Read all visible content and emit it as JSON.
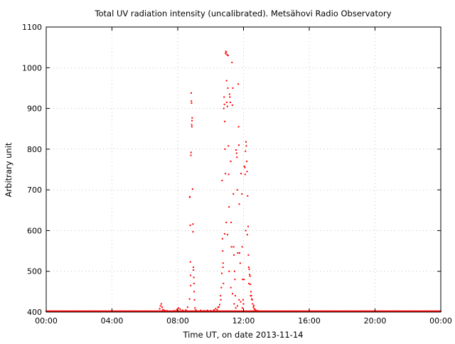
{
  "chart_data": {
    "type": "scatter",
    "title": "Total UV radiation intensity (uncalibrated). Metsähovi Radio Observatory",
    "xlabel": "Time UT, on date 2013-11-14",
    "ylabel": "Arbitrary unit",
    "xlim": [
      0,
      24
    ],
    "ylim": [
      400,
      1100
    ],
    "x_unit": "hours UT",
    "x_ticks": [
      0,
      4,
      8,
      12,
      16,
      20,
      24
    ],
    "x_tick_labels": [
      "00:00",
      "04:00",
      "08:00",
      "12:00",
      "16:00",
      "20:00",
      "00:00"
    ],
    "y_ticks": [
      400,
      500,
      600,
      700,
      800,
      900,
      1000,
      1100
    ],
    "y_tick_labels": [
      "400",
      "500",
      "600",
      "700",
      "800",
      "900",
      "1000",
      "1100"
    ],
    "grid": true,
    "legend": "none",
    "series": [
      {
        "color": "#ff0000",
        "baseline": {
          "x_start": 0.0,
          "x_end": 24.0,
          "step": 0.05,
          "y": 402
        },
        "points": [
          [
            6.9,
            408
          ],
          [
            6.95,
            415
          ],
          [
            7.0,
            420
          ],
          [
            7.05,
            412
          ],
          [
            7.1,
            406
          ],
          [
            7.2,
            404
          ],
          [
            7.35,
            403
          ],
          [
            7.8,
            403
          ],
          [
            7.95,
            406
          ],
          [
            8.05,
            410
          ],
          [
            8.15,
            407
          ],
          [
            8.3,
            404
          ],
          [
            8.5,
            405
          ],
          [
            8.6,
            412
          ],
          [
            8.72,
            432
          ],
          [
            8.73,
            683
          ],
          [
            8.74,
            682
          ],
          [
            8.76,
            613
          ],
          [
            8.77,
            523
          ],
          [
            8.78,
            490
          ],
          [
            8.79,
            465
          ],
          [
            8.8,
            785
          ],
          [
            8.81,
            792
          ],
          [
            8.82,
            938
          ],
          [
            8.83,
            918
          ],
          [
            8.84,
            913
          ],
          [
            8.85,
            860
          ],
          [
            8.86,
            855
          ],
          [
            8.87,
            870
          ],
          [
            8.88,
            877
          ],
          [
            8.9,
            702
          ],
          [
            8.92,
            616
          ],
          [
            8.93,
            597
          ],
          [
            8.95,
            510
          ],
          [
            8.96,
            503
          ],
          [
            8.98,
            485
          ],
          [
            8.99,
            470
          ],
          [
            9.0,
            450
          ],
          [
            9.02,
            430
          ],
          [
            9.05,
            410
          ],
          [
            9.1,
            405
          ],
          [
            9.4,
            404
          ],
          [
            9.6,
            403
          ],
          [
            9.8,
            404
          ],
          [
            10.0,
            403
          ],
          [
            10.2,
            405
          ],
          [
            10.4,
            406
          ],
          [
            10.5,
            412
          ],
          [
            10.55,
            418
          ],
          [
            10.62,
            430
          ],
          [
            10.68,
            495
          ],
          [
            10.7,
            723
          ],
          [
            10.72,
            580
          ],
          [
            10.74,
            550
          ],
          [
            10.76,
            520
          ],
          [
            10.78,
            470
          ],
          [
            10.8,
            900
          ],
          [
            10.82,
            928
          ],
          [
            10.84,
            910
          ],
          [
            10.86,
            868
          ],
          [
            10.88,
            800
          ],
          [
            10.9,
            740
          ],
          [
            10.91,
            1035
          ],
          [
            10.93,
            1040
          ],
          [
            10.95,
            1038
          ],
          [
            10.97,
            968
          ],
          [
            10.98,
            915
          ],
          [
            11.0,
            1032
          ],
          [
            11.02,
            905
          ],
          [
            11.05,
            950
          ],
          [
            11.06,
            1030
          ],
          [
            11.08,
            808
          ],
          [
            11.1,
            738
          ],
          [
            11.12,
            658
          ],
          [
            11.15,
            935
          ],
          [
            11.17,
            928
          ],
          [
            11.2,
            915
          ],
          [
            11.22,
            770
          ],
          [
            11.25,
            620
          ],
          [
            11.27,
            560
          ],
          [
            11.3,
            1013
          ],
          [
            11.32,
            908
          ],
          [
            11.35,
            950
          ],
          [
            11.38,
            690
          ],
          [
            11.4,
            560
          ],
          [
            11.42,
            540
          ],
          [
            11.45,
            500
          ],
          [
            11.48,
            480
          ],
          [
            11.5,
            440
          ],
          [
            11.55,
            798
          ],
          [
            11.58,
            790
          ],
          [
            11.6,
            780
          ],
          [
            11.62,
            700
          ],
          [
            11.65,
            545
          ],
          [
            11.68,
            960
          ],
          [
            11.7,
            855
          ],
          [
            11.72,
            810
          ],
          [
            11.74,
            665
          ],
          [
            11.76,
            545
          ],
          [
            11.8,
            520
          ],
          [
            11.85,
            740
          ],
          [
            11.9,
            690
          ],
          [
            11.92,
            560
          ],
          [
            11.95,
            480
          ],
          [
            11.98,
            430
          ],
          [
            12.05,
            758
          ],
          [
            12.08,
            755
          ],
          [
            12.1,
            738
          ],
          [
            12.12,
            795
          ],
          [
            12.15,
            818
          ],
          [
            12.17,
            808
          ],
          [
            12.2,
            770
          ],
          [
            12.22,
            745
          ],
          [
            12.25,
            685
          ],
          [
            12.28,
            610
          ],
          [
            12.3,
            540
          ],
          [
            12.32,
            510
          ],
          [
            12.35,
            505
          ],
          [
            12.37,
            492
          ],
          [
            12.4,
            488
          ],
          [
            12.42,
            468
          ],
          [
            12.45,
            450
          ],
          [
            12.48,
            440
          ],
          [
            12.5,
            432
          ],
          [
            12.55,
            420
          ],
          [
            12.6,
            412
          ],
          [
            12.65,
            408
          ],
          [
            12.7,
            406
          ],
          [
            10.3,
            408
          ],
          [
            10.45,
            412
          ],
          [
            10.6,
            440
          ],
          [
            10.65,
            460
          ],
          [
            10.75,
            510
          ],
          [
            10.85,
            592
          ],
          [
            10.95,
            620
          ],
          [
            11.03,
            590
          ],
          [
            11.13,
            500
          ],
          [
            11.23,
            460
          ],
          [
            11.33,
            445
          ],
          [
            11.43,
            420
          ],
          [
            11.53,
            410
          ],
          [
            11.63,
            415
          ],
          [
            11.73,
            430
          ],
          [
            11.83,
            425
          ],
          [
            11.93,
            410
          ],
          [
            12.0,
            420
          ],
          [
            12.03,
            480
          ],
          [
            12.13,
            600
          ],
          [
            12.23,
            590
          ],
          [
            12.33,
            470
          ],
          [
            12.43,
            440
          ],
          [
            12.53,
            430
          ],
          [
            12.63,
            416
          ],
          [
            12.75,
            404
          ],
          [
            12.85,
            403
          ],
          [
            12.95,
            402
          ]
        ]
      }
    ]
  }
}
